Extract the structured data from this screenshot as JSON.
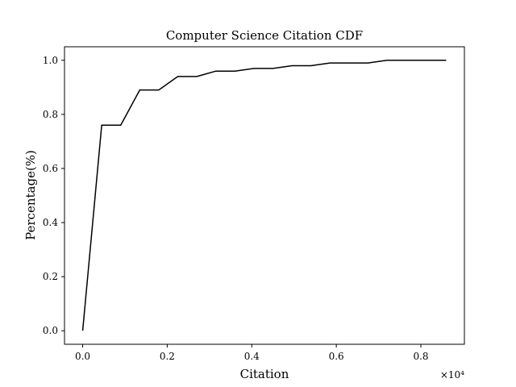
{
  "chart_data": {
    "type": "line",
    "title": "Computer Science Citation CDF",
    "xlabel": "Citation",
    "ylabel": "Percentage(%)",
    "x_offset_label": "×10⁴",
    "x_scale_factor": 10000,
    "xlim": [
      -0.043,
      0.903
    ],
    "ylim": [
      -0.05,
      1.05
    ],
    "xticks": [
      0.0,
      0.2,
      0.4,
      0.6,
      0.8
    ],
    "xtick_labels": [
      "0.0",
      "0.2",
      "0.4",
      "0.6",
      "0.8"
    ],
    "yticks": [
      0.0,
      0.2,
      0.4,
      0.6,
      0.8,
      1.0
    ],
    "ytick_labels": [
      "0.0",
      "0.2",
      "0.4",
      "0.6",
      "0.8",
      "1.0"
    ],
    "grid": false,
    "line_color": "#000000",
    "series": [
      {
        "x": [
          0.0,
          0.045,
          0.09,
          0.135,
          0.18,
          0.225,
          0.27,
          0.315,
          0.36,
          0.405,
          0.45,
          0.495,
          0.54,
          0.585,
          0.63,
          0.675,
          0.72,
          0.765,
          0.81,
          0.86
        ],
        "y": [
          0.0,
          0.76,
          0.76,
          0.89,
          0.89,
          0.94,
          0.94,
          0.96,
          0.96,
          0.97,
          0.97,
          0.98,
          0.98,
          0.99,
          0.99,
          0.99,
          1.0,
          1.0,
          1.0,
          1.0
        ]
      }
    ]
  }
}
